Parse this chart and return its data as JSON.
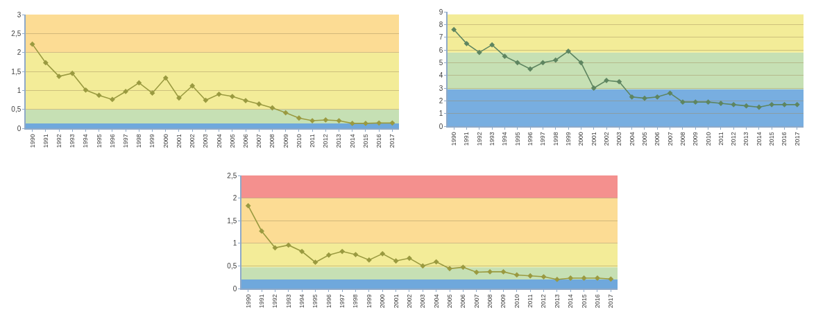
{
  "chart_data": [
    {
      "type": "line",
      "categories": [
        "1990",
        "1991",
        "1992",
        "1993",
        "1994",
        "1995",
        "1996",
        "1997",
        "1998",
        "1999",
        "2000",
        "2001",
        "2002",
        "2003",
        "2004",
        "2005",
        "2006",
        "2007",
        "2008",
        "2009",
        "2010",
        "2011",
        "2012",
        "2013",
        "2014",
        "2015",
        "2016",
        "2017"
      ],
      "series": [
        {
          "color": "#9a9a40",
          "values": [
            2.22,
            1.73,
            1.37,
            1.45,
            1.01,
            0.87,
            0.76,
            0.97,
            1.2,
            0.93,
            1.33,
            0.8,
            1.12,
            0.74,
            0.9,
            0.84,
            0.73,
            0.64,
            0.54,
            0.41,
            0.27,
            0.2,
            0.22,
            0.2,
            0.13,
            0.13,
            0.14,
            0.14
          ]
        }
      ],
      "ylim": [
        0,
        3
      ],
      "yticks": [
        0,
        {
          "value": 0.5,
          "label": "0,5"
        },
        1,
        {
          "value": 1.5,
          "label": "1,5"
        },
        2,
        {
          "value": 2.5,
          "label": "2,5"
        },
        3
      ],
      "bands": [
        {
          "axis": "y",
          "from": 0,
          "to": 0.13,
          "color": "#6fa8dc"
        },
        {
          "axis": "y",
          "from": 0.13,
          "to": 0.5,
          "color": "#c6e0b4"
        },
        {
          "axis": "y",
          "from": 0.5,
          "to": 2,
          "color": "#f3ec98"
        },
        {
          "axis": "y",
          "from": 2,
          "to": 3,
          "color": "#fcdc94"
        }
      ],
      "grid": "y",
      "marker": "diamond",
      "line_style": "solid"
    },
    {
      "type": "line",
      "categories": [
        "1990",
        "1991",
        "1992",
        "1993",
        "1994",
        "1995",
        "1996",
        "1997",
        "1998",
        "1999",
        "2000",
        "2001",
        "2002",
        "2003",
        "2004",
        "2005",
        "2006",
        "2007",
        "2008",
        "2009",
        "2010",
        "2011",
        "2012",
        "2013",
        "2014",
        "2015",
        "2016",
        "2017"
      ],
      "series": [
        {
          "color": "#5e8560",
          "values": [
            7.6,
            6.5,
            5.8,
            6.4,
            5.5,
            5.0,
            4.5,
            5.0,
            5.2,
            5.9,
            5.0,
            3.0,
            3.6,
            3.5,
            2.3,
            2.2,
            2.3,
            2.6,
            1.9,
            1.9,
            1.9,
            1.8,
            1.7,
            1.6,
            1.5,
            1.7,
            1.7,
            1.7
          ]
        }
      ],
      "ylim": [
        0,
        9
      ],
      "yticks": [
        0,
        1,
        2,
        3,
        4,
        5,
        6,
        7,
        8,
        9
      ],
      "bands": [
        {
          "axis": "y",
          "from": 0,
          "to": 2.9,
          "color": "#78aee0"
        },
        {
          "axis": "y",
          "from": 2.9,
          "to": 5.8,
          "color": "#c6e0b4"
        },
        {
          "axis": "y",
          "from": 5.8,
          "to": 8.8,
          "color": "#f3ec98"
        }
      ],
      "grid": "y",
      "marker": "diamond",
      "line_style": "solid"
    },
    {
      "type": "line",
      "categories": [
        "1990",
        "1991",
        "1992",
        "1993",
        "1994",
        "1995",
        "1996",
        "1997",
        "1998",
        "1999",
        "2000",
        "2001",
        "2002",
        "2003",
        "2004",
        "2005",
        "2006",
        "2007",
        "2008",
        "2009",
        "2010",
        "2011",
        "2012",
        "2013",
        "2014",
        "2015",
        "2016",
        "2017"
      ],
      "series": [
        {
          "color": "#9a9a40",
          "values": [
            1.83,
            1.27,
            0.9,
            0.96,
            0.82,
            0.58,
            0.74,
            0.82,
            0.75,
            0.63,
            0.77,
            0.61,
            0.67,
            0.5,
            0.59,
            0.44,
            0.47,
            0.36,
            0.37,
            0.37,
            0.3,
            0.28,
            0.26,
            0.2,
            0.23,
            0.23,
            0.23,
            0.21
          ]
        }
      ],
      "ylim": [
        0,
        2.5
      ],
      "yticks": [
        0,
        {
          "value": 0.5,
          "label": "0,5"
        },
        1,
        {
          "value": 1.5,
          "label": "1,5"
        },
        2,
        {
          "value": 2.5,
          "label": "2,5"
        }
      ],
      "bands": [
        {
          "axis": "y",
          "from": 0,
          "to": 0.2,
          "color": "#6fa8dc"
        },
        {
          "axis": "y",
          "from": 0.2,
          "to": 0.47,
          "color": "#c6e0b4"
        },
        {
          "axis": "y",
          "from": 0.47,
          "to": 1,
          "color": "#f3ec98"
        },
        {
          "axis": "y",
          "from": 1,
          "to": 2,
          "color": "#fcdc94"
        },
        {
          "axis": "y",
          "from": 2,
          "to": 2.5,
          "color": "#f4908e"
        }
      ],
      "grid": "y",
      "marker": "diamond",
      "line_style": "solid"
    }
  ]
}
